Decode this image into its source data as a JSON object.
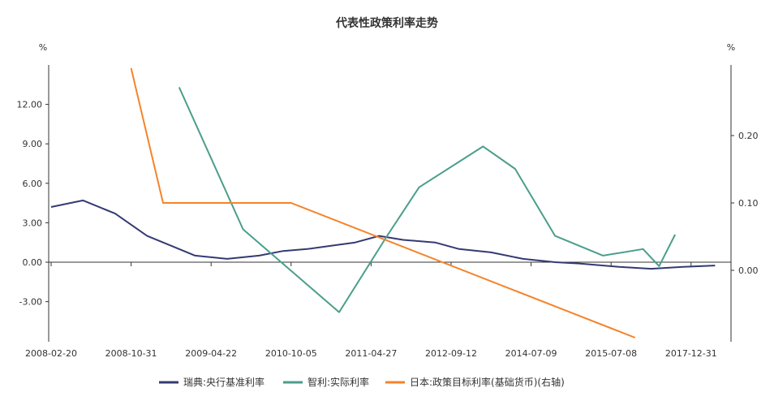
{
  "chart_data": {
    "type": "line",
    "title": "代表性政策利率走势",
    "left_unit": "%",
    "right_unit": "%",
    "x_tick_labels": [
      "2008-02-20",
      "2008-10-31",
      "2009-04-22",
      "2010-10-05",
      "2011-04-27",
      "2012-09-12",
      "2014-07-09",
      "2015-07-08",
      "2017-12-31"
    ],
    "y_left": {
      "ticks": [
        "12.00",
        "9.00",
        "6.00",
        "3.00",
        "0.00",
        "-3.00"
      ],
      "values": [
        12,
        9,
        6,
        3,
        0,
        -3
      ],
      "range": [
        -6,
        15
      ]
    },
    "y_right": {
      "ticks": [
        "0.20",
        "0.10",
        "0.00"
      ],
      "values": [
        0.2,
        0.1,
        0.0
      ],
      "range": [
        -0.1,
        0.3
      ]
    },
    "series": [
      {
        "name": "瑞典:央行基准利率",
        "axis": "left",
        "color": "#333a73",
        "x": [
          0,
          0.4,
          0.8,
          1.2,
          1.6,
          1.8,
          2.2,
          2.6,
          2.9,
          3.2,
          3.5,
          3.8,
          4.1,
          4.4,
          4.8,
          5.1,
          5.5,
          5.9,
          6.3,
          6.6,
          7.1,
          7.5,
          7.9,
          8.3
        ],
        "values": [
          4.2,
          4.7,
          3.7,
          2.0,
          1.0,
          0.5,
          0.25,
          0.5,
          0.85,
          1.0,
          1.25,
          1.5,
          2.0,
          1.7,
          1.5,
          1.0,
          0.75,
          0.25,
          0.0,
          -0.1,
          -0.35,
          -0.5,
          -0.35,
          -0.25
        ]
      },
      {
        "name": "智利:实际利率",
        "axis": "left",
        "color": "#4a9e8b",
        "x": [
          1.6,
          2.4,
          3.6,
          4.2,
          4.6,
          5.4,
          5.8,
          6.3,
          6.9,
          7.4,
          7.6,
          7.8
        ],
        "values": [
          13.3,
          2.5,
          -3.8,
          2.0,
          5.7,
          8.8,
          7.1,
          2.0,
          0.5,
          1.0,
          -0.3,
          2.1
        ]
      },
      {
        "name": "日本:政策目标利率(基础货币)(右轴)",
        "axis": "right",
        "color": "#f5832a",
        "x": [
          1.0,
          1.4,
          3.0,
          7.3
        ],
        "values": [
          0.3,
          0.1,
          0.1,
          -0.1
        ]
      }
    ],
    "legend": [
      "瑞典:央行基准利率",
      "智利:实际利率",
      "日本:政策目标利率(基础货币)(右轴)"
    ],
    "legend_position": "bottom"
  }
}
